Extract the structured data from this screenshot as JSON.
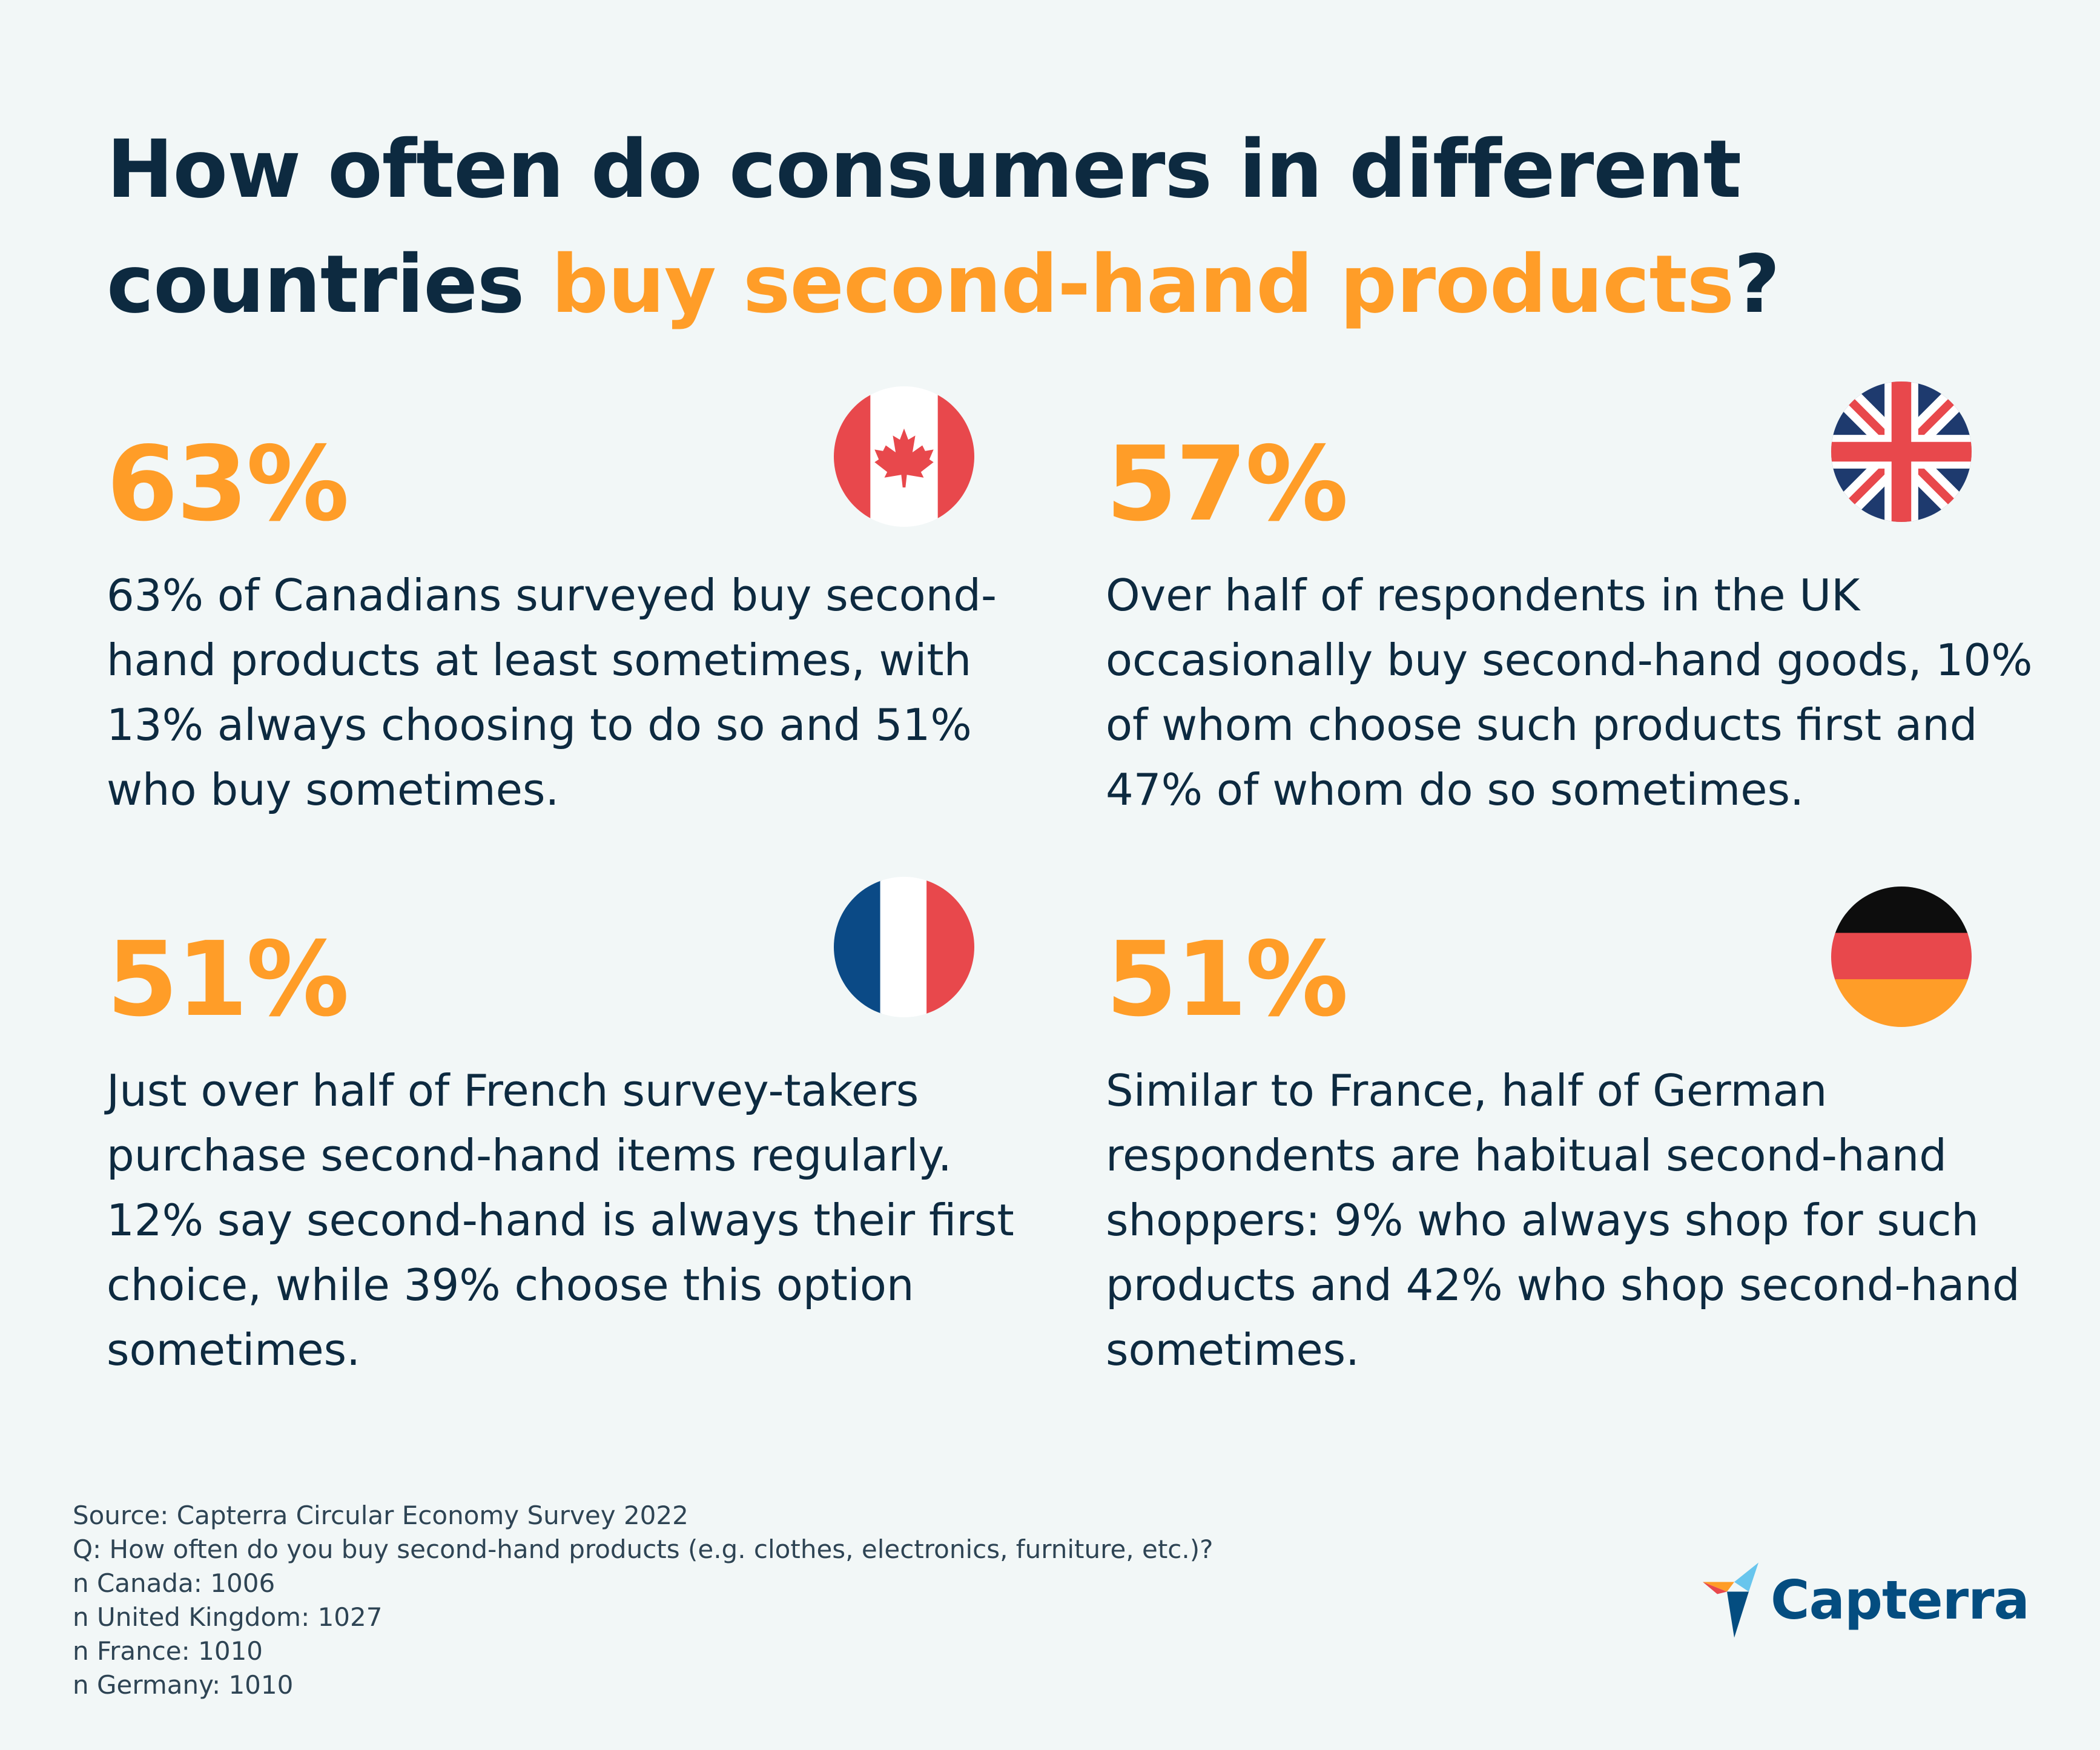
{
  "title": {
    "line1": "How often do consumers in different",
    "line2_prefix": "countries ",
    "line2_highlight": "buy second-hand products",
    "line2_suffix": "?"
  },
  "stats": [
    {
      "country_flag": "canada-flag-icon",
      "percent": "63%",
      "text": "63% of Canadians surveyed buy second-hand products at least sometimes, with 13% always choosing to do so and 51% who buy sometimes."
    },
    {
      "country_flag": "uk-flag-icon",
      "percent": "57%",
      "text": "Over half of respondents in the UK occasionally buy second-hand goods, 10% of whom choose such products first and 47% of whom do so sometimes."
    },
    {
      "country_flag": "france-flag-icon",
      "percent": "51%",
      "text": "Just over half of French survey-takers purchase second-hand items regularly. 12% say second-hand is always their first choice, while 39% choose this option sometimes."
    },
    {
      "country_flag": "germany-flag-icon",
      "percent": "51%",
      "text": "Similar to France, half of German respondents are habitual second-hand shoppers: 9% who always shop for such products and 42% who shop second-hand sometimes."
    }
  ],
  "source": {
    "line1": "Source: Capterra Circular Economy Survey 2022",
    "line2": "Q: How often do you buy second-hand products (e.g. clothes, electronics, furniture, etc.)?",
    "line3": "n Canada: 1006",
    "line4": "n United Kingdom: 1027",
    "line5": "n France: 1010",
    "line6": "n Germany: 1010"
  },
  "brand": {
    "name": "Capterra",
    "icon": "capterra-logo-icon"
  },
  "colors": {
    "accent": "#ff9d28",
    "text": "#0d2a40",
    "background": "#f2f7f7",
    "brand": "#044d80"
  }
}
